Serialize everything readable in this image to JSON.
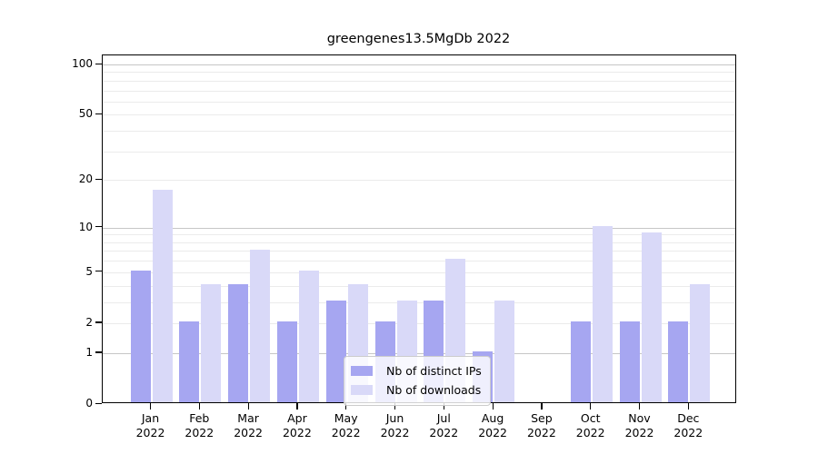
{
  "title": "greengenes13.5MgDb 2022",
  "chart_data": {
    "type": "bar",
    "title": "greengenes13.5MgDb 2022",
    "categories": [
      "Jan",
      "Feb",
      "Mar",
      "Apr",
      "May",
      "Jun",
      "Jul",
      "Aug",
      "Sep",
      "Oct",
      "Nov",
      "Dec"
    ],
    "year_label": "2022",
    "series": [
      {
        "name": "Nb of distinct IPs",
        "color": "#a6a6f1",
        "values": [
          5,
          2,
          4,
          2,
          3,
          2,
          3,
          1,
          0,
          2,
          2,
          2
        ]
      },
      {
        "name": "Nb of downloads",
        "color": "#d9d9f8",
        "values": [
          17,
          4,
          7,
          5,
          4,
          3,
          6,
          3,
          0,
          10,
          9,
          4
        ]
      }
    ],
    "yticks": [
      0,
      1,
      2,
      5,
      10,
      20,
      50,
      100
    ],
    "ytick_labels": [
      "0",
      "1",
      "2",
      "5",
      "10",
      "20",
      "50",
      "100"
    ],
    "major_gridlines": [
      1,
      10,
      100
    ],
    "minor_gridlines": [
      2,
      3,
      4,
      5,
      6,
      7,
      8,
      9,
      20,
      30,
      40,
      50,
      60,
      70,
      80,
      90
    ],
    "scale": "log1p",
    "ylim": [
      0,
      114
    ],
    "grid": true,
    "legend_position": "lower-center"
  }
}
